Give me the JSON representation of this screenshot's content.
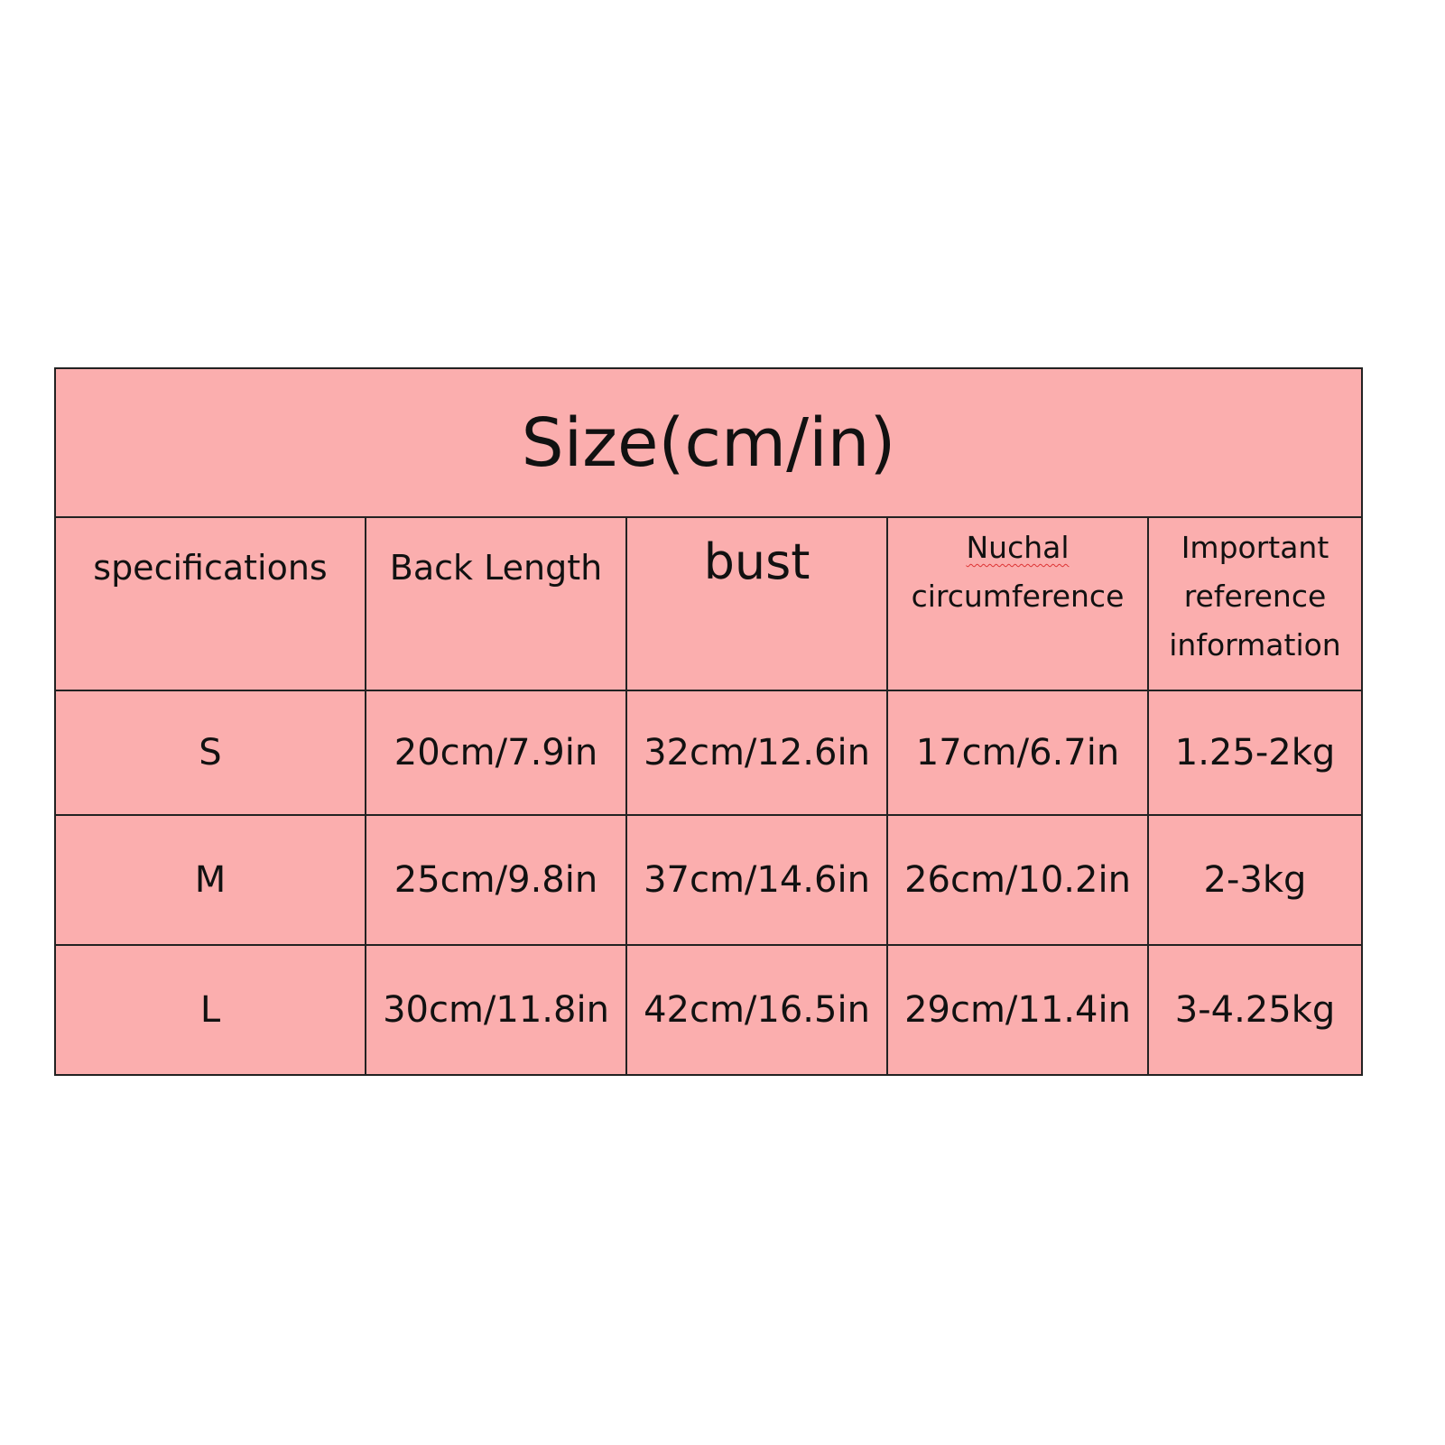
{
  "title": "Size(cm/in)",
  "headers": [
    "specifications",
    "Back Length",
    "bust",
    "Nuchal",
    "circumference",
    "Important",
    "reference",
    "information"
  ],
  "rows": [
    [
      "S",
      "20cm/7.9in",
      "32cm/12.6in",
      "17cm/6.7in",
      "1.25-2kg"
    ],
    [
      "M",
      "25cm/9.8in",
      "37cm/14.6in",
      "26cm/10.2in",
      "2-3kg"
    ],
    [
      "L",
      "30cm/11.8in",
      "42cm/16.5in",
      "29cm/11.4in",
      "3-4.25kg"
    ]
  ],
  "colors": {
    "table_background": "#fbaeae",
    "border": "#222222"
  }
}
